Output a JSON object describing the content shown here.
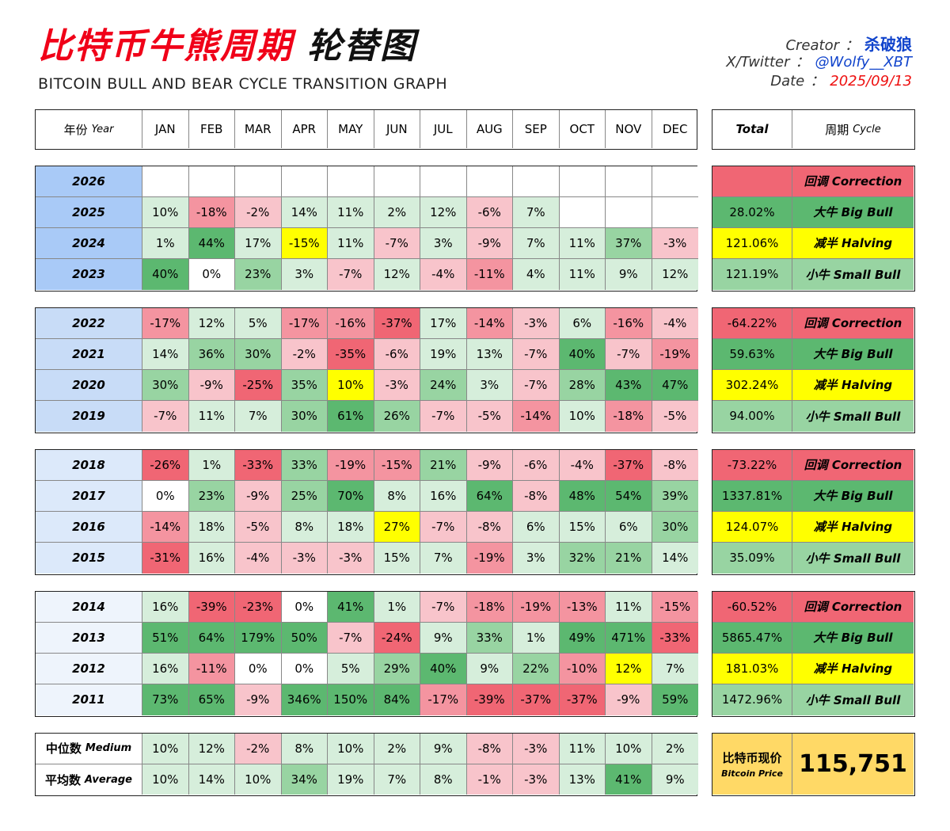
{
  "header": {
    "title_cn_1": "比特币牛熊周期",
    "title_cn_2": "轮替图",
    "title_en": "BITCOIN BULL AND BEAR CYCLE TRANSITION GRAPH",
    "creator_label": "Creator",
    "creator_value": "杀破狼",
    "twitter_label": "X/Twitter",
    "twitter_value": "@Wolfy__XBT",
    "date_label": "Date",
    "date_value": "2025/09/13",
    "sep": "："
  },
  "colors": {
    "green_dark": "#5cb870",
    "green_mid": "#98d4a2",
    "green_light": "#d6eedb",
    "white": "#ffffff",
    "red_light": "#f8c4cb",
    "red_mid": "#f494a0",
    "red_dark": "#f06674",
    "yellow": "#ffff00",
    "price_bg": "#ffd966",
    "year_blue_1": "#a9caf7",
    "year_blue_2": "#c8dcf7",
    "year_blue_3": "#dce9fa",
    "year_blue_4": "#eef4fc",
    "halving_year": "#ffff00"
  },
  "chart_data": {
    "type": "table",
    "columns": {
      "year": "年份",
      "year_en": "Year",
      "months": [
        "JAN",
        "FEB",
        "MAR",
        "APR",
        "MAY",
        "JUN",
        "JUL",
        "AUG",
        "SEP",
        "OCT",
        "NOV",
        "DEC"
      ],
      "total": "Total",
      "cycle": "周期",
      "cycle_en": "Cycle"
    },
    "groups": [
      {
        "rows": [
          {
            "year": "2026",
            "months": [
              "",
              "",
              "",
              "",
              "",
              "",
              "",
              "",
              "",
              "",
              "",
              ""
            ],
            "total": "",
            "cycle": "回调 Correction",
            "cycle_type": "correction"
          },
          {
            "year": "2025",
            "months": [
              "10%",
              "-18%",
              "-2%",
              "14%",
              "11%",
              "2%",
              "12%",
              "-6%",
              "7%",
              "",
              "",
              ""
            ],
            "total": "28.02%",
            "cycle": "大牛 Big Bull",
            "cycle_type": "big_bull"
          },
          {
            "year": "2024",
            "months": [
              "1%",
              "44%",
              "17%",
              "-15%",
              "11%",
              "-7%",
              "3%",
              "-9%",
              "7%",
              "11%",
              "37%",
              "-3%"
            ],
            "total": "121.06%",
            "cycle": "减半 Halving",
            "cycle_type": "halving",
            "halving_month": 3
          },
          {
            "year": "2023",
            "months": [
              "40%",
              "0%",
              "23%",
              "3%",
              "-7%",
              "12%",
              "-4%",
              "-11%",
              "4%",
              "11%",
              "9%",
              "12%"
            ],
            "total": "121.19%",
            "cycle": "小牛 Small Bull",
            "cycle_type": "small_bull"
          }
        ]
      },
      {
        "rows": [
          {
            "year": "2022",
            "months": [
              "-17%",
              "12%",
              "5%",
              "-17%",
              "-16%",
              "-37%",
              "17%",
              "-14%",
              "-3%",
              "6%",
              "-16%",
              "-4%"
            ],
            "total": "-64.22%",
            "cycle": "回调 Correction",
            "cycle_type": "correction"
          },
          {
            "year": "2021",
            "months": [
              "14%",
              "36%",
              "30%",
              "-2%",
              "-35%",
              "-6%",
              "19%",
              "13%",
              "-7%",
              "40%",
              "-7%",
              "-19%"
            ],
            "total": "59.63%",
            "cycle": "大牛 Big Bull",
            "cycle_type": "big_bull"
          },
          {
            "year": "2020",
            "months": [
              "30%",
              "-9%",
              "-25%",
              "35%",
              "10%",
              "-3%",
              "24%",
              "3%",
              "-7%",
              "28%",
              "43%",
              "47%"
            ],
            "total": "302.24%",
            "cycle": "减半 Halving",
            "cycle_type": "halving",
            "halving_month": 4
          },
          {
            "year": "2019",
            "months": [
              "-7%",
              "11%",
              "7%",
              "30%",
              "61%",
              "26%",
              "-7%",
              "-5%",
              "-14%",
              "10%",
              "-18%",
              "-5%"
            ],
            "total": "94.00%",
            "cycle": "小牛 Small Bull",
            "cycle_type": "small_bull"
          }
        ]
      },
      {
        "rows": [
          {
            "year": "2018",
            "months": [
              "-26%",
              "1%",
              "-33%",
              "33%",
              "-19%",
              "-15%",
              "21%",
              "-9%",
              "-6%",
              "-4%",
              "-37%",
              "-8%"
            ],
            "total": "-73.22%",
            "cycle": "回调 Correction",
            "cycle_type": "correction"
          },
          {
            "year": "2017",
            "months": [
              "0%",
              "23%",
              "-9%",
              "25%",
              "70%",
              "8%",
              "16%",
              "64%",
              "-8%",
              "48%",
              "54%",
              "39%"
            ],
            "total": "1337.81%",
            "cycle": "大牛 Big Bull",
            "cycle_type": "big_bull"
          },
          {
            "year": "2016",
            "months": [
              "-14%",
              "18%",
              "-5%",
              "8%",
              "18%",
              "27%",
              "-7%",
              "-8%",
              "6%",
              "15%",
              "6%",
              "30%"
            ],
            "total": "124.07%",
            "cycle": "减半 Halving",
            "cycle_type": "halving",
            "halving_month": 5
          },
          {
            "year": "2015",
            "months": [
              "-31%",
              "16%",
              "-4%",
              "-3%",
              "-3%",
              "15%",
              "7%",
              "-19%",
              "3%",
              "32%",
              "21%",
              "14%"
            ],
            "total": "35.09%",
            "cycle": "小牛 Small Bull",
            "cycle_type": "small_bull"
          }
        ]
      },
      {
        "rows": [
          {
            "year": "2014",
            "months": [
              "16%",
              "-39%",
              "-23%",
              "0%",
              "41%",
              "1%",
              "-7%",
              "-18%",
              "-19%",
              "-13%",
              "11%",
              "-15%"
            ],
            "total": "-60.52%",
            "cycle": "回调 Correction",
            "cycle_type": "correction"
          },
          {
            "year": "2013",
            "months": [
              "51%",
              "64%",
              "179%",
              "50%",
              "-7%",
              "-24%",
              "9%",
              "33%",
              "1%",
              "49%",
              "471%",
              "-33%"
            ],
            "total": "5865.47%",
            "cycle": "大牛 Big Bull",
            "cycle_type": "big_bull"
          },
          {
            "year": "2012",
            "months": [
              "16%",
              "-11%",
              "0%",
              "0%",
              "5%",
              "29%",
              "40%",
              "9%",
              "22%",
              "-10%",
              "12%",
              "7%"
            ],
            "total": "181.03%",
            "cycle": "减半 Halving",
            "cycle_type": "halving",
            "halving_month": 10
          },
          {
            "year": "2011",
            "months": [
              "73%",
              "65%",
              "-9%",
              "346%",
              "150%",
              "84%",
              "-17%",
              "-39%",
              "-37%",
              "-37%",
              "-9%",
              "59%"
            ],
            "total": "1472.96%",
            "cycle": "小牛 Small Bull",
            "cycle_type": "small_bull"
          }
        ]
      }
    ],
    "stats": [
      {
        "label": "中位数",
        "label_en": "Medium",
        "months": [
          "10%",
          "12%",
          "-2%",
          "8%",
          "10%",
          "2%",
          "9%",
          "-8%",
          "-3%",
          "11%",
          "10%",
          "2%"
        ]
      },
      {
        "label": "平均数",
        "label_en": "Average",
        "months": [
          "10%",
          "14%",
          "10%",
          "34%",
          "19%",
          "7%",
          "8%",
          "-1%",
          "-3%",
          "13%",
          "41%",
          "9%"
        ]
      }
    ],
    "price": {
      "label_cn": "比特币现价",
      "label_en": "Bitcoin Price",
      "value": "115,751"
    }
  }
}
